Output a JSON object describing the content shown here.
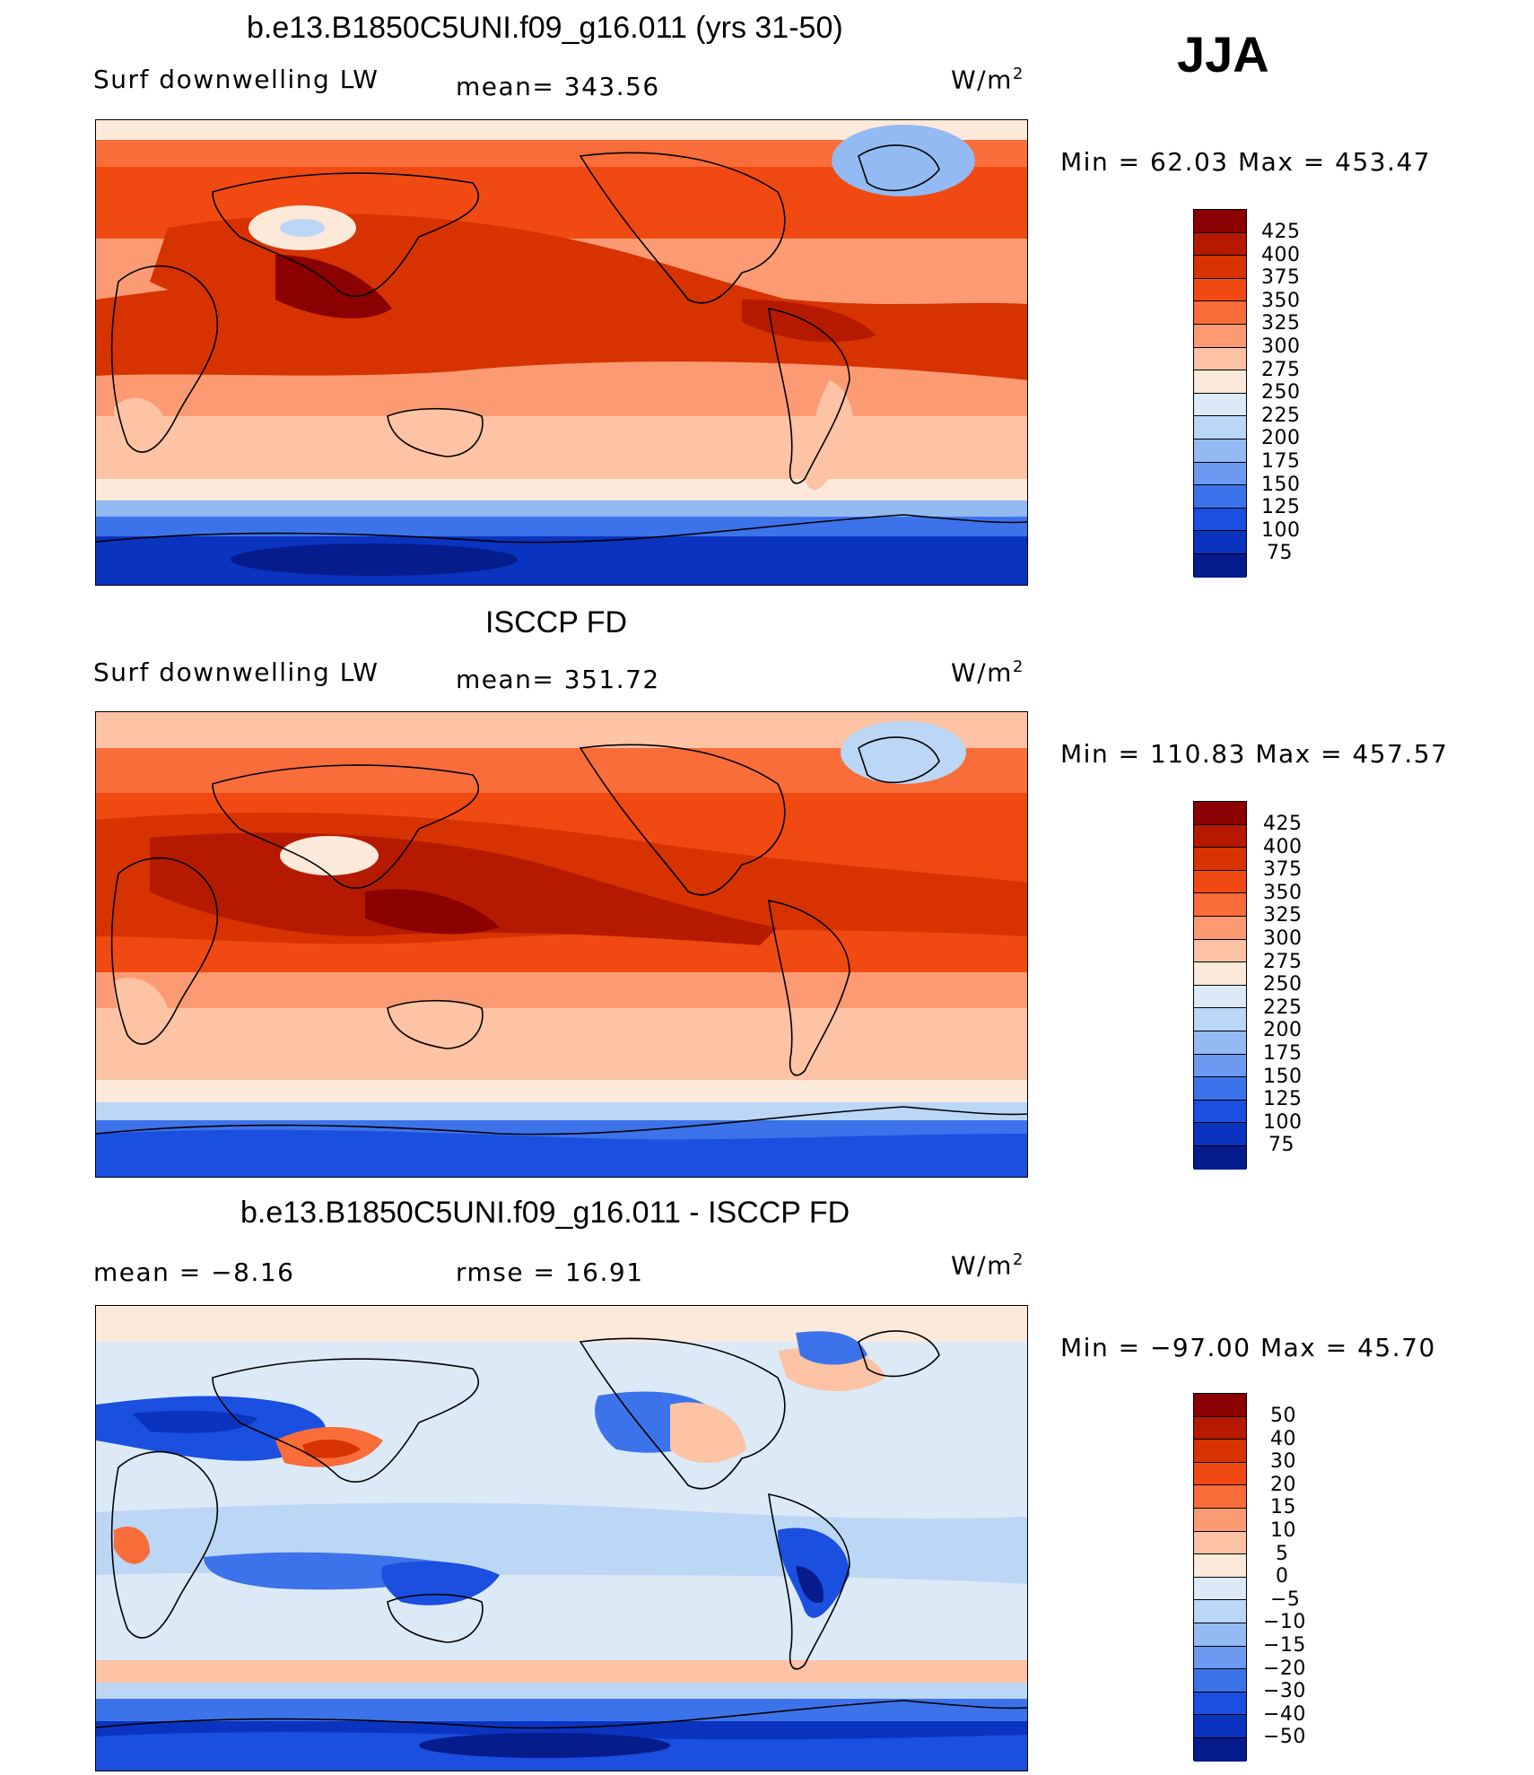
{
  "season": "JJA",
  "units_label": "W/m",
  "units_exp": "2",
  "panels": [
    {
      "title": "b.e13.B1850C5UNI.f09_g16.011 (yrs 31-50)",
      "left": "Surf  downwelling  LW",
      "center": "mean=  343.56",
      "minmax": "Min  =    62.03  Max  =  453.47"
    },
    {
      "title": "ISCCP FD",
      "left": "Surf  downwelling  LW",
      "center": "mean=  351.72",
      "minmax": "Min  =  110.83  Max  =  457.57"
    },
    {
      "title": "b.e13.B1850C5UNI.f09_g16.011 - ISCCP FD",
      "left": "mean  =    −8.16",
      "center": "rmse  =    16.91",
      "minmax": "Min  =  −97.00  Max  =    45.70"
    }
  ],
  "colorbars": {
    "absolute": {
      "labels": [
        "425",
        "400",
        "375",
        "350",
        "325",
        "300",
        "275",
        "250",
        "225",
        "200",
        "175",
        "150",
        "125",
        "100",
        "75"
      ],
      "colors": [
        "#8b0000",
        "#b51a00",
        "#d63300",
        "#f04a12",
        "#f86d3a",
        "#fc9b73",
        "#fcc3a4",
        "#fde9d9",
        "#dceaf8",
        "#bcd6f5",
        "#93baf2",
        "#6b9af0",
        "#3d73ea",
        "#1a4fe0",
        "#0a33c0",
        "#061b8c"
      ]
    },
    "difference": {
      "labels": [
        "50",
        "40",
        "30",
        "20",
        "15",
        "10",
        "5",
        "0",
        "−5",
        "−10",
        "−15",
        "−20",
        "−30",
        "−40",
        "−50"
      ],
      "colors": [
        "#8b0000",
        "#b51a00",
        "#d63300",
        "#f04a12",
        "#f86d3a",
        "#fc9b73",
        "#fcc3a4",
        "#fde9d9",
        "#dceaf8",
        "#bcd6f5",
        "#93baf2",
        "#6b9af0",
        "#3d73ea",
        "#1a4fe0",
        "#0a33c0",
        "#061b8c"
      ]
    }
  }
}
